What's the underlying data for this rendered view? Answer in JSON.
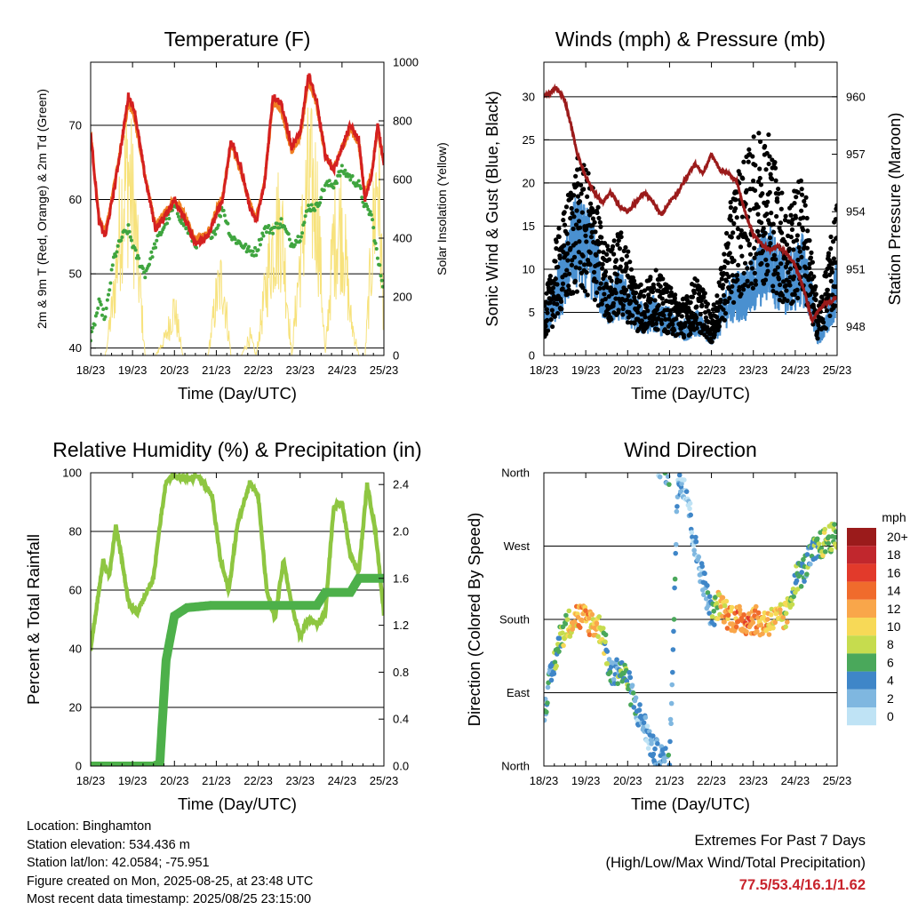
{
  "x_ticks": [
    "18/23",
    "19/23",
    "20/23",
    "21/23",
    "22/23",
    "23/23",
    "24/23",
    "25/23"
  ],
  "x_label": "Time (Day/UTC)",
  "colors": {
    "temp_2m": "#d42020",
    "temp_9m": "#f07f22",
    "dewpoint": "#3fa53f",
    "solar": "#f7e27c",
    "wind": "#4a90d0",
    "gust": "#000000",
    "pressure": "#9b1b1b",
    "rh": "#8ec641",
    "precip": "#4db04a",
    "extremes": "#c8232c"
  },
  "chart_data": [
    {
      "type": "line",
      "title": "Temperature (F)",
      "xlabel": "Time (Day/UTC)",
      "ylabel": "2m & 9m T (Red, Orange) & 2m Td (Green)",
      "y2label": "Solar Insolation (Yellow)",
      "ylim": [
        39,
        78.5
      ],
      "y2lim": [
        0,
        1000
      ],
      "yticks": [
        40,
        50,
        60,
        70
      ],
      "y2ticks": [
        0,
        200,
        400,
        600,
        800,
        1000
      ],
      "x": [
        0,
        0.2,
        0.35,
        0.55,
        0.75,
        0.9,
        1.05,
        1.3,
        1.55,
        1.8,
        2.0,
        2.2,
        2.5,
        2.8,
        3.0,
        3.15,
        3.35,
        3.6,
        3.8,
        3.95,
        4.15,
        4.35,
        4.55,
        4.8,
        5.0,
        5.2,
        5.4,
        5.6,
        5.8,
        6.0,
        6.2,
        6.4,
        6.55,
        6.7,
        6.85,
        7.0
      ],
      "series": [
        {
          "name": "2m T",
          "values": [
            69,
            57,
            55,
            61,
            68,
            74,
            72,
            63,
            56,
            58,
            60,
            58,
            54,
            55,
            58,
            60,
            68,
            64,
            59,
            57,
            62,
            74,
            73,
            67,
            69,
            77,
            73,
            66,
            64,
            67,
            70,
            68,
            60,
            63,
            70,
            65
          ]
        },
        {
          "name": "9m T",
          "values": [
            69,
            57.5,
            55.5,
            61.5,
            68,
            73,
            71,
            63,
            56.5,
            58.5,
            60,
            58.5,
            54.5,
            55.5,
            58.5,
            60.5,
            67.5,
            63.5,
            59.5,
            57.5,
            62.5,
            73,
            72,
            66.5,
            68.5,
            76,
            72.5,
            66,
            64,
            67,
            69.5,
            67.5,
            60.5,
            63.5,
            69.5,
            65
          ]
        },
        {
          "name": "2m Td",
          "values": [
            41,
            46,
            44,
            52,
            55,
            56,
            53,
            50,
            54,
            57,
            59,
            57,
            54,
            55,
            56,
            59,
            55,
            54,
            53,
            53,
            56,
            56,
            57,
            54,
            55,
            59,
            59,
            62,
            62,
            64,
            63,
            62,
            59,
            58,
            52,
            48
          ]
        },
        {
          "name": "Solar Insolation",
          "values": [
            0,
            0,
            0,
            300,
            800,
            960,
            700,
            0,
            0,
            100,
            250,
            0,
            0,
            0,
            300,
            400,
            0,
            0,
            100,
            0,
            300,
            600,
            700,
            0,
            500,
            900,
            800,
            0,
            600,
            700,
            200,
            0,
            0,
            500,
            980,
            200
          ]
        }
      ]
    },
    {
      "type": "scatter",
      "title": "Winds (mph) & Pressure (mb)",
      "xlabel": "Time (Day/UTC)",
      "ylabel": "Sonic Wind & Gust (Blue, Black)",
      "y2label": "Station Pressure (Maroon)",
      "ylim": [
        0,
        34
      ],
      "y2lim": [
        946.5,
        961.8
      ],
      "yticks": [
        0,
        5,
        10,
        15,
        20,
        25,
        30
      ],
      "y2ticks": [
        948,
        951,
        954,
        957,
        960
      ],
      "x": [
        0,
        0.15,
        0.3,
        0.5,
        0.65,
        0.8,
        1.0,
        1.2,
        1.4,
        1.6,
        1.8,
        2.0,
        2.2,
        2.4,
        2.6,
        2.8,
        3.0,
        3.2,
        3.4,
        3.6,
        3.8,
        4.0,
        4.2,
        4.4,
        4.6,
        4.8,
        5.0,
        5.2,
        5.4,
        5.6,
        5.8,
        6.0,
        6.2,
        6.4,
        6.55,
        6.7,
        6.85,
        7.0
      ],
      "series": [
        {
          "name": "Sonic Wind",
          "values": [
            4,
            5,
            7,
            9,
            12,
            13,
            12,
            11,
            7,
            6,
            7,
            6,
            5,
            4,
            5,
            4,
            4,
            3,
            3,
            4,
            3,
            2,
            4,
            6,
            7,
            7,
            8,
            10,
            11,
            9,
            8,
            9,
            10,
            6,
            2,
            3,
            5,
            8
          ]
        },
        {
          "name": "Gust",
          "values": [
            6,
            8,
            12,
            15,
            18,
            20,
            19,
            18,
            12,
            11,
            13,
            11,
            8,
            7,
            9,
            8,
            7,
            6,
            6,
            8,
            7,
            4,
            8,
            14,
            19,
            20,
            22,
            24,
            23,
            18,
            15,
            17,
            19,
            10,
            5,
            8,
            12,
            16
          ]
        },
        {
          "name": "Station Pressure",
          "values": [
            960,
            960.2,
            960.5,
            959.8,
            958.5,
            957,
            955.8,
            955,
            954.5,
            955,
            954.3,
            954,
            954.5,
            955,
            954.5,
            953.8,
            954.5,
            955,
            955.8,
            956.5,
            956,
            957,
            956.2,
            956,
            955.6,
            954,
            952.8,
            952.3,
            952,
            952.2,
            951.8,
            951.2,
            950,
            948.3,
            948.8,
            949.2,
            949.3,
            949.6
          ]
        }
      ]
    },
    {
      "type": "line",
      "title": "Relative Humidity (%) & Precipitation (in)",
      "xlabel": "Time (Day/UTC)",
      "ylabel": "Percent & Total Rainfall",
      "ylim": [
        0,
        100
      ],
      "y2lim": [
        0,
        2.5
      ],
      "yticks": [
        0,
        20,
        40,
        60,
        80,
        100
      ],
      "y2ticks": [
        0.0,
        0.4,
        0.8,
        1.2,
        1.6,
        2.0,
        2.4
      ],
      "x": [
        0,
        0.15,
        0.3,
        0.45,
        0.6,
        0.75,
        0.9,
        1.1,
        1.3,
        1.5,
        1.65,
        1.8,
        2.0,
        2.3,
        2.6,
        2.9,
        3.1,
        3.3,
        3.5,
        3.8,
        4.0,
        4.2,
        4.4,
        4.6,
        4.8,
        5.0,
        5.2,
        5.4,
        5.6,
        5.8,
        6.0,
        6.2,
        6.4,
        6.6,
        6.8,
        7.0
      ],
      "series": [
        {
          "name": "Relative Humidity",
          "values": [
            40,
            55,
            70,
            65,
            82,
            70,
            56,
            52,
            58,
            64,
            82,
            97,
            99,
            98,
            99,
            92,
            70,
            60,
            82,
            97,
            92,
            60,
            50,
            70,
            55,
            44,
            50,
            48,
            52,
            88,
            90,
            72,
            66,
            96,
            80,
            52
          ]
        },
        {
          "name": "Total Precipitation",
          "values": [
            0,
            0,
            0,
            0,
            0,
            0,
            0,
            0,
            0,
            0,
            0.02,
            0.9,
            1.28,
            1.35,
            1.36,
            1.37,
            1.37,
            1.37,
            1.37,
            1.37,
            1.37,
            1.37,
            1.37,
            1.37,
            1.37,
            1.37,
            1.37,
            1.37,
            1.48,
            1.48,
            1.48,
            1.48,
            1.6,
            1.6,
            1.6,
            1.6
          ]
        }
      ]
    },
    {
      "type": "scatter",
      "title": "Wind Direction",
      "xlabel": "Time (Day/UTC)",
      "ylabel": "Direction (Colored By Speed)",
      "y_categories": [
        "North",
        "East",
        "South",
        "West",
        "North"
      ],
      "ylim": [
        0,
        360
      ],
      "legend_title": "mph",
      "legend_labels": [
        "20+",
        "18",
        "16",
        "14",
        "12",
        "10",
        "8",
        "6",
        "4",
        "2",
        "0"
      ],
      "legend_colors": [
        "#9b1b1b",
        "#c1272d",
        "#e23a2b",
        "#f06b2c",
        "#f9a64a",
        "#f7d957",
        "#c6dc4e",
        "#4aa85b",
        "#3f86c8",
        "#7fb7e0",
        "#bfe3f5"
      ],
      "x": [
        0,
        0.2,
        0.4,
        0.6,
        0.8,
        1.0,
        1.2,
        1.4,
        1.6,
        1.8,
        2.0,
        2.2,
        2.4,
        2.6,
        2.8,
        3.0,
        3.2,
        3.4,
        3.6,
        3.8,
        4.0,
        4.2,
        4.4,
        4.6,
        4.8,
        5.0,
        5.2,
        5.4,
        5.6,
        5.8,
        6.0,
        6.2,
        6.4,
        6.6,
        6.8,
        7.0
      ],
      "series": [
        {
          "name": "Direction",
          "values": [
            70,
            115,
            160,
            175,
            185,
            180,
            175,
            165,
            110,
            120,
            105,
            70,
            50,
            20,
            10,
            0,
            355,
            340,
            270,
            230,
            185,
            200,
            185,
            180,
            178,
            180,
            175,
            178,
            180,
            185,
            230,
            240,
            260,
            270,
            280,
            280
          ]
        },
        {
          "name": "Speed",
          "values": [
            3,
            5,
            7,
            9,
            11,
            12,
            10,
            8,
            4,
            5,
            6,
            3,
            2,
            2,
            3,
            4,
            3,
            2,
            2,
            3,
            5,
            10,
            12,
            13,
            14,
            13,
            12,
            11,
            10,
            9,
            6,
            5,
            5,
            7,
            8,
            7
          ]
        }
      ]
    }
  ],
  "info": {
    "location": "Location: Binghamton",
    "elevation": "Station elevation: 534.436 m",
    "latlon": "Station lat/lon: 42.0584; -75.951",
    "created": "Figure created on Mon, 2025-08-25, at 23:48 UTC",
    "recent": "Most recent data timestamp: 2025/08/25 23:15:00"
  },
  "extremes": {
    "title": "Extremes For Past 7 Days",
    "subtitle": "(High/Low/Max Wind/Total Precipitation)",
    "values": "77.5/53.4/16.1/1.62"
  }
}
